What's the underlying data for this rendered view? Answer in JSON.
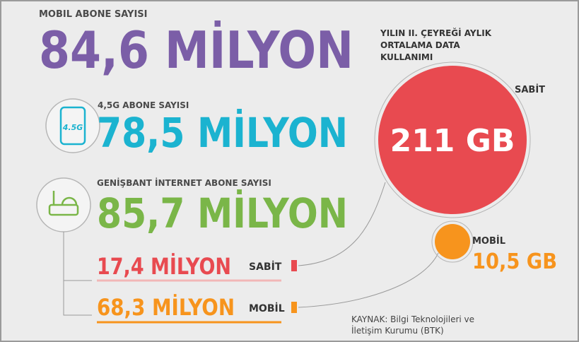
{
  "mobile": {
    "label": "MOBIL ABONE SAYISI",
    "value": "84,6 MİLYON"
  },
  "g45": {
    "icon": "4.5G",
    "label": "4,5G ABONE SAYISI",
    "value": "78,5 MİLYON"
  },
  "broadband": {
    "label": "GENİŞBANT İNTERNET ABONE SAYISI",
    "value": "85,7 MİLYON",
    "fixed": {
      "value": "17,4 MİLYON",
      "label": "SABİT"
    },
    "mobile": {
      "value": "68,3 MİLYON",
      "label": "MOBİL"
    }
  },
  "usage": {
    "title": [
      "YILIN II. ÇEYREĞİ AYLIK",
      "ORTALAMA DATA",
      "KULLANIMI"
    ],
    "fixed": {
      "label": "SABİT",
      "value": "211 GB"
    },
    "mobile": {
      "label": "MOBİL",
      "value": "10,5 GB"
    }
  },
  "source": [
    "KAYNAK: Bilgi Teknolojileri ve",
    "İletişim Kurumu (BTK)"
  ]
}
